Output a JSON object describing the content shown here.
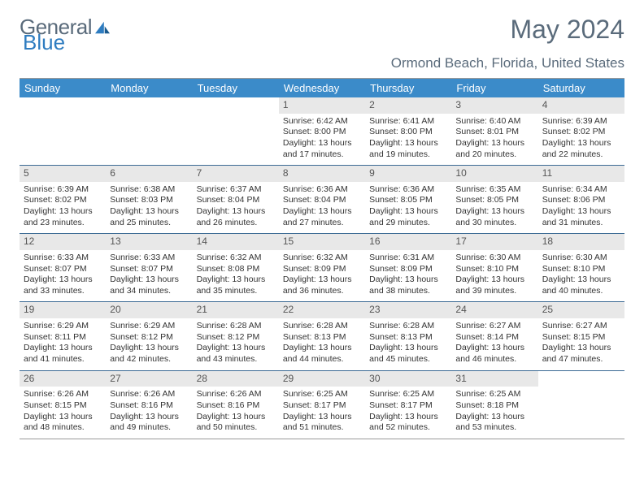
{
  "brand": {
    "part1": "General",
    "part2": "Blue"
  },
  "title": "May 2024",
  "location": "Ormond Beach, Florida, United States",
  "day_headers": [
    "Sunday",
    "Monday",
    "Tuesday",
    "Wednesday",
    "Thursday",
    "Friday",
    "Saturday"
  ],
  "colors": {
    "header_bg": "#3b8bc9",
    "header_text": "#ffffff",
    "title_text": "#5a6b7b",
    "cell_border": "#3b6a94",
    "daynum_bg": "#e8e8e8"
  },
  "weeks": [
    [
      {
        "n": "",
        "lines": []
      },
      {
        "n": "",
        "lines": []
      },
      {
        "n": "",
        "lines": []
      },
      {
        "n": "1",
        "lines": [
          "Sunrise: 6:42 AM",
          "Sunset: 8:00 PM",
          "Daylight: 13 hours",
          "and 17 minutes."
        ]
      },
      {
        "n": "2",
        "lines": [
          "Sunrise: 6:41 AM",
          "Sunset: 8:00 PM",
          "Daylight: 13 hours",
          "and 19 minutes."
        ]
      },
      {
        "n": "3",
        "lines": [
          "Sunrise: 6:40 AM",
          "Sunset: 8:01 PM",
          "Daylight: 13 hours",
          "and 20 minutes."
        ]
      },
      {
        "n": "4",
        "lines": [
          "Sunrise: 6:39 AM",
          "Sunset: 8:02 PM",
          "Daylight: 13 hours",
          "and 22 minutes."
        ]
      }
    ],
    [
      {
        "n": "5",
        "lines": [
          "Sunrise: 6:39 AM",
          "Sunset: 8:02 PM",
          "Daylight: 13 hours",
          "and 23 minutes."
        ]
      },
      {
        "n": "6",
        "lines": [
          "Sunrise: 6:38 AM",
          "Sunset: 8:03 PM",
          "Daylight: 13 hours",
          "and 25 minutes."
        ]
      },
      {
        "n": "7",
        "lines": [
          "Sunrise: 6:37 AM",
          "Sunset: 8:04 PM",
          "Daylight: 13 hours",
          "and 26 minutes."
        ]
      },
      {
        "n": "8",
        "lines": [
          "Sunrise: 6:36 AM",
          "Sunset: 8:04 PM",
          "Daylight: 13 hours",
          "and 27 minutes."
        ]
      },
      {
        "n": "9",
        "lines": [
          "Sunrise: 6:36 AM",
          "Sunset: 8:05 PM",
          "Daylight: 13 hours",
          "and 29 minutes."
        ]
      },
      {
        "n": "10",
        "lines": [
          "Sunrise: 6:35 AM",
          "Sunset: 8:05 PM",
          "Daylight: 13 hours",
          "and 30 minutes."
        ]
      },
      {
        "n": "11",
        "lines": [
          "Sunrise: 6:34 AM",
          "Sunset: 8:06 PM",
          "Daylight: 13 hours",
          "and 31 minutes."
        ]
      }
    ],
    [
      {
        "n": "12",
        "lines": [
          "Sunrise: 6:33 AM",
          "Sunset: 8:07 PM",
          "Daylight: 13 hours",
          "and 33 minutes."
        ]
      },
      {
        "n": "13",
        "lines": [
          "Sunrise: 6:33 AM",
          "Sunset: 8:07 PM",
          "Daylight: 13 hours",
          "and 34 minutes."
        ]
      },
      {
        "n": "14",
        "lines": [
          "Sunrise: 6:32 AM",
          "Sunset: 8:08 PM",
          "Daylight: 13 hours",
          "and 35 minutes."
        ]
      },
      {
        "n": "15",
        "lines": [
          "Sunrise: 6:32 AM",
          "Sunset: 8:09 PM",
          "Daylight: 13 hours",
          "and 36 minutes."
        ]
      },
      {
        "n": "16",
        "lines": [
          "Sunrise: 6:31 AM",
          "Sunset: 8:09 PM",
          "Daylight: 13 hours",
          "and 38 minutes."
        ]
      },
      {
        "n": "17",
        "lines": [
          "Sunrise: 6:30 AM",
          "Sunset: 8:10 PM",
          "Daylight: 13 hours",
          "and 39 minutes."
        ]
      },
      {
        "n": "18",
        "lines": [
          "Sunrise: 6:30 AM",
          "Sunset: 8:10 PM",
          "Daylight: 13 hours",
          "and 40 minutes."
        ]
      }
    ],
    [
      {
        "n": "19",
        "lines": [
          "Sunrise: 6:29 AM",
          "Sunset: 8:11 PM",
          "Daylight: 13 hours",
          "and 41 minutes."
        ]
      },
      {
        "n": "20",
        "lines": [
          "Sunrise: 6:29 AM",
          "Sunset: 8:12 PM",
          "Daylight: 13 hours",
          "and 42 minutes."
        ]
      },
      {
        "n": "21",
        "lines": [
          "Sunrise: 6:28 AM",
          "Sunset: 8:12 PM",
          "Daylight: 13 hours",
          "and 43 minutes."
        ]
      },
      {
        "n": "22",
        "lines": [
          "Sunrise: 6:28 AM",
          "Sunset: 8:13 PM",
          "Daylight: 13 hours",
          "and 44 minutes."
        ]
      },
      {
        "n": "23",
        "lines": [
          "Sunrise: 6:28 AM",
          "Sunset: 8:13 PM",
          "Daylight: 13 hours",
          "and 45 minutes."
        ]
      },
      {
        "n": "24",
        "lines": [
          "Sunrise: 6:27 AM",
          "Sunset: 8:14 PM",
          "Daylight: 13 hours",
          "and 46 minutes."
        ]
      },
      {
        "n": "25",
        "lines": [
          "Sunrise: 6:27 AM",
          "Sunset: 8:15 PM",
          "Daylight: 13 hours",
          "and 47 minutes."
        ]
      }
    ],
    [
      {
        "n": "26",
        "lines": [
          "Sunrise: 6:26 AM",
          "Sunset: 8:15 PM",
          "Daylight: 13 hours",
          "and 48 minutes."
        ]
      },
      {
        "n": "27",
        "lines": [
          "Sunrise: 6:26 AM",
          "Sunset: 8:16 PM",
          "Daylight: 13 hours",
          "and 49 minutes."
        ]
      },
      {
        "n": "28",
        "lines": [
          "Sunrise: 6:26 AM",
          "Sunset: 8:16 PM",
          "Daylight: 13 hours",
          "and 50 minutes."
        ]
      },
      {
        "n": "29",
        "lines": [
          "Sunrise: 6:25 AM",
          "Sunset: 8:17 PM",
          "Daylight: 13 hours",
          "and 51 minutes."
        ]
      },
      {
        "n": "30",
        "lines": [
          "Sunrise: 6:25 AM",
          "Sunset: 8:17 PM",
          "Daylight: 13 hours",
          "and 52 minutes."
        ]
      },
      {
        "n": "31",
        "lines": [
          "Sunrise: 6:25 AM",
          "Sunset: 8:18 PM",
          "Daylight: 13 hours",
          "and 53 minutes."
        ]
      },
      {
        "n": "",
        "lines": []
      }
    ]
  ]
}
